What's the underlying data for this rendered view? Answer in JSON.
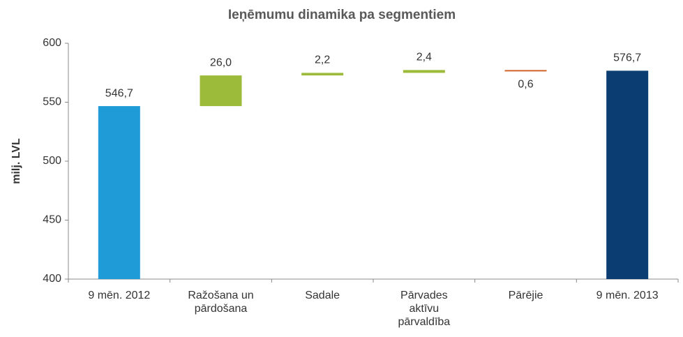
{
  "chart_data": {
    "type": "waterfall",
    "title": "Ieņēmumu dinamika pa segmentiem",
    "y_label": "milj. LVL",
    "categories": [
      "9 mēn. 2012",
      "Ražošana un pārdošana",
      "Sadale",
      "Pārvades aktīvu pārvaldība",
      "Pārējie",
      "9 mēn. 2013"
    ],
    "values": [
      546.7,
      26.0,
      2.2,
      2.4,
      -0.6,
      576.7
    ],
    "value_labels": [
      "546,7",
      "26,0",
      "2,2",
      "2,4",
      "0,6",
      "576,7"
    ],
    "is_total": [
      true,
      false,
      false,
      false,
      false,
      true
    ],
    "colors": [
      "#1f9bd7",
      "#9dbb3a",
      "#9dbb3a",
      "#9dbb3a",
      "#d0632a",
      "#0b3d73"
    ],
    "ylim": [
      400,
      600
    ],
    "yticks": [
      400,
      450,
      500,
      550,
      600
    ],
    "grid": false
  }
}
